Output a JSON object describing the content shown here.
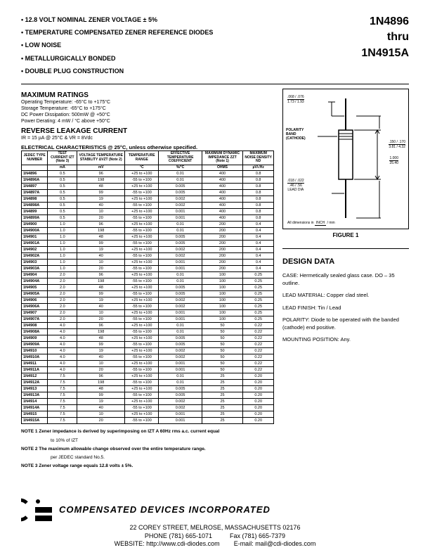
{
  "features": [
    "12.8 VOLT NOMINAL ZENER VOLTAGE ± 5%",
    "TEMPERATURE COMPENSATED ZENER REFERENCE DIODES",
    "LOW NOISE",
    "METALLURGICALLY BONDED",
    "DOUBLE PLUG CONSTRUCTION"
  ],
  "part_from": "1N4896",
  "part_thru": "thru",
  "part_to": "1N4915A",
  "max_ratings_title": "MAXIMUM RATINGS",
  "ratings": {
    "op_temp": "Operating Temperature: -65°C to +175°C",
    "st_temp": "Storage Temperature: -65°C to +175°C",
    "dc_power": "DC Power Dissipation: 500mW @ +50°C",
    "derating": "Power Derating: 4 mW / °C above +50°C"
  },
  "rev_leak_title": "REVERSE LEAKAGE CURRENT",
  "rev_leak_cond": "IR = 15 µA @ 25°C & VR = 8Vdc",
  "elec_title": "ELECTRICAL CHARACTERISTICS @ 25°C, unless otherwise specified.",
  "table": {
    "headers": [
      "JEDEC TYPE NUMBER",
      "TEST CURRENT IZT (Note 3)",
      "VOLTAGE TEMPERATURE STABILITY ΔVZT (Note 2)",
      "TEMPERATURE RANGE",
      "EFFECTIVE TEMPERATURE COEFFICIENT",
      "MAXIMUM DYNAMIC IMPEDANCE ZZT (Note 1)",
      "MAXIMUM NOISE DENSITY ND"
    ],
    "units": [
      "",
      "mA",
      "mV",
      "°C",
      "%/°C",
      "OHMS",
      "µV/√Hz"
    ],
    "rows": [
      [
        "1N4896",
        "0.5",
        "96",
        "+25 to +100",
        "0.01",
        "400",
        "0.8"
      ],
      [
        "1N4896A",
        "0.5",
        "198",
        "-55 to +100",
        "0.01",
        "400",
        "0.8"
      ],
      [
        "1N4897",
        "0.5",
        "48",
        "+25 to +100",
        "0.005",
        "400",
        "0.8"
      ],
      [
        "1N4897A",
        "0.5",
        "99",
        "-55 to +100",
        "0.005",
        "400",
        "0.8"
      ],
      [
        "1N4898",
        "0.5",
        "19",
        "+25 to +100",
        "0.002",
        "400",
        "0.8"
      ],
      [
        "1N4898A",
        "0.5",
        "40",
        "-55 to +100",
        "0.002",
        "400",
        "0.8"
      ],
      [
        "1N4899",
        "0.5",
        "10",
        "+25 to +100",
        "0.001",
        "400",
        "0.8"
      ],
      [
        "1N4899A",
        "0.5",
        "20",
        "-55 to +100",
        "0.001",
        "400",
        "0.8"
      ],
      [
        "1N4900",
        "1.0",
        "96",
        "+25 to +100",
        "0.01",
        "200",
        "0.4"
      ],
      [
        "1N4900A",
        "1.0",
        "198",
        "-55 to +100",
        "0.01",
        "200",
        "0.4"
      ],
      [
        "1N4901",
        "1.0",
        "48",
        "+25 to +100",
        "0.005",
        "200",
        "0.4"
      ],
      [
        "1N4901A",
        "1.0",
        "99",
        "-55 to +100",
        "0.005",
        "200",
        "0.4"
      ],
      [
        "1N4902",
        "1.0",
        "19",
        "+25 to +100",
        "0.002",
        "200",
        "0.4"
      ],
      [
        "1N4902A",
        "1.0",
        "40",
        "-55 to +100",
        "0.002",
        "200",
        "0.4"
      ],
      [
        "1N4903",
        "1.0",
        "10",
        "+25 to +100",
        "0.001",
        "200",
        "0.4"
      ],
      [
        "1N4903A",
        "1.0",
        "20",
        "-55 to +100",
        "0.001",
        "200",
        "0.4"
      ],
      [
        "1N4904",
        "2.0",
        "96",
        "+25 to +100",
        "0.01",
        "100",
        "0.25"
      ],
      [
        "1N4904A",
        "2.0",
        "198",
        "-55 to +100",
        "0.01",
        "100",
        "0.25"
      ],
      [
        "1N4905",
        "2.0",
        "48",
        "+25 to +100",
        "0.005",
        "100",
        "0.25"
      ],
      [
        "1N4905A",
        "2.0",
        "99",
        "-55 to +100",
        "0.005",
        "100",
        "0.25"
      ],
      [
        "1N4906",
        "2.0",
        "19",
        "+25 to +100",
        "0.002",
        "100",
        "0.25"
      ],
      [
        "1N4906A",
        "2.0",
        "40",
        "-55 to +100",
        "0.002",
        "100",
        "0.25"
      ],
      [
        "1N4907",
        "2.0",
        "10",
        "+25 to +100",
        "0.001",
        "100",
        "0.25"
      ],
      [
        "1N4907A",
        "2.0",
        "20",
        "-55 to +100",
        "0.001",
        "100",
        "0.25"
      ],
      [
        "1N4908",
        "4.0",
        "96",
        "+25 to +100",
        "0.01",
        "50",
        "0.22"
      ],
      [
        "1N4908A",
        "4.0",
        "198",
        "-55 to +100",
        "0.01",
        "50",
        "0.22"
      ],
      [
        "1N4909",
        "4.0",
        "48",
        "+25 to +100",
        "0.005",
        "50",
        "0.22"
      ],
      [
        "1N4909A",
        "4.0",
        "99",
        "-55 to +100",
        "0.005",
        "50",
        "0.22"
      ],
      [
        "1N4910",
        "4.0",
        "19",
        "+25 to +100",
        "0.002",
        "50",
        "0.22"
      ],
      [
        "1N4910A",
        "4.0",
        "40",
        "-55 to +100",
        "0.002",
        "50",
        "0.22"
      ],
      [
        "1N4911",
        "4.0",
        "10",
        "+25 to +100",
        "0.001",
        "50",
        "0.22"
      ],
      [
        "1N4911A",
        "4.0",
        "20",
        "-55 to +100",
        "0.001",
        "50",
        "0.22"
      ],
      [
        "1N4912",
        "7.5",
        "96",
        "+25 to +100",
        "0.01",
        "25",
        "0.20"
      ],
      [
        "1N4912A",
        "7.5",
        "198",
        "-55 to +100",
        "0.01",
        "25",
        "0.20"
      ],
      [
        "1N4913",
        "7.5",
        "48",
        "+25 to +100",
        "0.005",
        "25",
        "0.20"
      ],
      [
        "1N4913A",
        "7.5",
        "99",
        "-55 to +100",
        "0.005",
        "25",
        "0.20"
      ],
      [
        "1N4914",
        "7.5",
        "19",
        "+25 to +100",
        "0.002",
        "25",
        "0.20"
      ],
      [
        "1N4914A",
        "7.5",
        "40",
        "-55 to +100",
        "0.002",
        "25",
        "0.20"
      ],
      [
        "1N4915",
        "7.5",
        "10",
        "+25 to +100",
        "0.001",
        "25",
        "0.20"
      ],
      [
        "1N4915A",
        "7.5",
        "20",
        "-55 to +100",
        "0.001",
        "25",
        "0.20"
      ]
    ]
  },
  "notes": {
    "n1a": "NOTE 1   Zener impedance is derived by superimposing on IZT A 60Hz rms a.c. current equal",
    "n1b": "to 10% of IZT",
    "n2a": "NOTE 2   The maximum allowable change observed over the entire temperature range.",
    "n2b": "per JEDEC standard No.5.",
    "n3": "NOTE 3   Zener voltage range equals 12.8 volts ± 5%."
  },
  "figure": {
    "caption": "FIGURE 1",
    "dim1": ".068 / .076",
    "dim1m": "1.73 / 1.93",
    "dim2": ".150 / .170",
    "dim2m": "3.81 / 4.32",
    "polarity": "POLARITY BAND (CATHODE)",
    "lead": ".018 / .022",
    "leadm": ".46 / .56",
    "leaddia": "LEAD DIA",
    "len": "1.000",
    "lenm": "25.40",
    "note": "All dimensions in",
    "inch": "INCH",
    "mm": "mm"
  },
  "design": {
    "title": "DESIGN DATA",
    "case": "CASE: Hermetically sealed glass case. DO – 35 outline.",
    "leadmat": "LEAD MATERIAL: Copper clad steel.",
    "leadfin": "LEAD FINISH: Tin / Lead",
    "polarity": "POLARITY: Diode to be operated with the banded (cathode) end positive.",
    "mount": "MOUNTING POSITION: Any."
  },
  "footer": {
    "company": "COMPENSATED DEVICES INCORPORATED",
    "addr1": "22 COREY STREET, MELROSE, MASSACHUSETTS 02176",
    "phone": "PHONE (781) 665-1071",
    "fax": "Fax (781) 665-7379",
    "web": "WEBSITE: http://www.cdi-diodes.com",
    "email": "E-mail: mail@cdi-diodes.com"
  }
}
